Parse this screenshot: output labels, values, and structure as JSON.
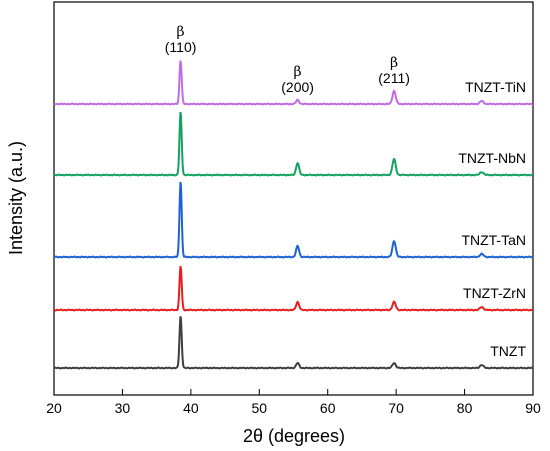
{
  "chart_data": {
    "type": "line",
    "xlabel": "2θ (degrees)",
    "ylabel": "Intensity (a.u.)",
    "xlim": [
      20,
      90
    ],
    "grid": false,
    "legend": "right-labels",
    "x_ticks": [
      20,
      30,
      40,
      50,
      60,
      70,
      80,
      90
    ],
    "peaks": [
      38.5,
      55.6,
      69.7,
      82.5
    ],
    "series": [
      {
        "name": "TNZT",
        "color": "#3f3f3f",
        "offset": 0,
        "peak_heights": [
          52,
          5,
          5,
          3
        ]
      },
      {
        "name": "TNZT-ZrN",
        "color": "#ea1d1d",
        "offset": 58,
        "peak_heights": [
          44,
          8,
          8,
          3
        ]
      },
      {
        "name": "TNZT-TaN",
        "color": "#1d63d4",
        "offset": 111,
        "peak_heights": [
          76,
          11,
          16,
          3
        ]
      },
      {
        "name": "TNZT-NbN",
        "color": "#13a35f",
        "offset": 193,
        "peak_heights": [
          63,
          12,
          16,
          3
        ]
      },
      {
        "name": "TNZT-TiN",
        "color": "#c06ce4",
        "offset": 264,
        "peak_heights": [
          44,
          4,
          13,
          3
        ]
      }
    ],
    "annotations": [
      {
        "symbol": "β",
        "text": "(110)",
        "x": 38.5
      },
      {
        "symbol": "β",
        "text": "(200)",
        "x": 55.6
      },
      {
        "symbol": "β",
        "text": "(211)",
        "x": 69.7
      }
    ]
  }
}
